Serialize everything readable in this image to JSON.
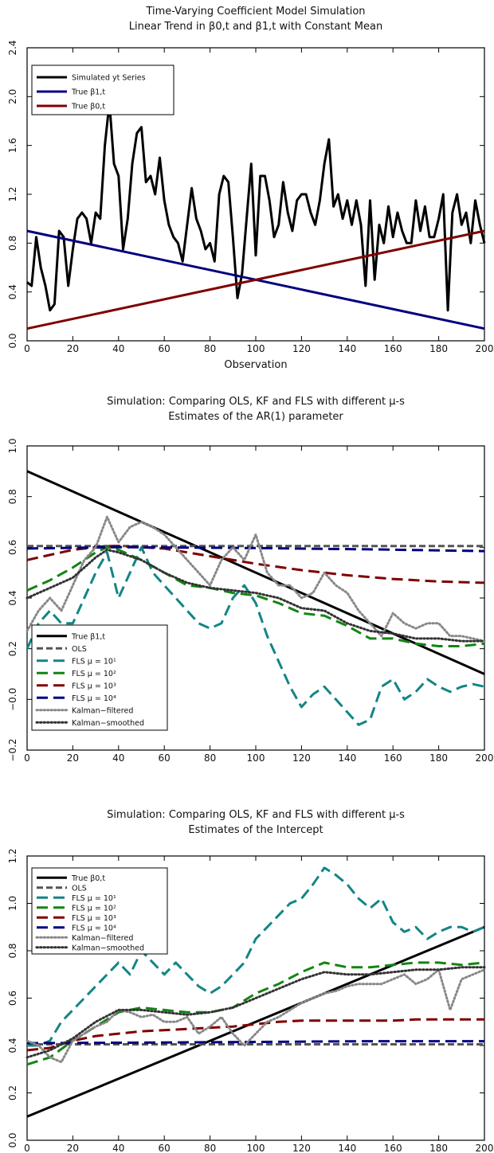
{
  "chart_data": [
    {
      "type": "line",
      "title": "Time-Varying Coefficient Model Simulation",
      "subtitle": "Linear Trend in β0,t and β1,t with Constant Mean",
      "xlabel": "Observation",
      "ylabel": "",
      "xlim": [
        0,
        200
      ],
      "ylim": [
        0.0,
        2.4
      ],
      "xticks": [
        "0",
        "20",
        "40",
        "60",
        "80",
        "100",
        "120",
        "140",
        "160",
        "180",
        "200"
      ],
      "yticks": [
        "0.0",
        "0.4",
        "0.8",
        "1.2",
        "1.6",
        "2.0",
        "2.4"
      ],
      "grid": false,
      "legend_position": "top-left",
      "colors": {
        "y": "#000000",
        "b1": "#00007f",
        "b0": "#7f0000"
      },
      "series": [
        {
          "name": "Simulated yt Series",
          "style": "solid",
          "color": "#000000",
          "x": [
            0,
            2,
            4,
            6,
            8,
            10,
            12,
            14,
            16,
            18,
            20,
            22,
            24,
            26,
            28,
            30,
            32,
            34,
            36,
            38,
            40,
            42,
            44,
            46,
            48,
            50,
            52,
            54,
            56,
            58,
            60,
            62,
            64,
            66,
            68,
            70,
            72,
            74,
            76,
            78,
            80,
            82,
            84,
            86,
            88,
            90,
            92,
            94,
            96,
            98,
            100,
            102,
            104,
            106,
            108,
            110,
            112,
            114,
            116,
            118,
            120,
            122,
            124,
            126,
            128,
            130,
            132,
            134,
            136,
            138,
            140,
            142,
            144,
            146,
            148,
            150,
            152,
            154,
            156,
            158,
            160,
            162,
            164,
            166,
            168,
            170,
            172,
            174,
            176,
            178,
            180,
            182,
            184,
            186,
            188,
            190,
            192,
            194,
            196,
            198,
            200
          ],
          "y": [
            0.48,
            0.45,
            0.85,
            0.6,
            0.45,
            0.25,
            0.3,
            0.9,
            0.85,
            0.45,
            0.75,
            1.0,
            1.05,
            1.0,
            0.8,
            1.05,
            1.0,
            1.6,
            1.95,
            1.45,
            1.35,
            0.75,
            1.0,
            1.45,
            1.7,
            1.75,
            1.3,
            1.35,
            1.2,
            1.5,
            1.15,
            0.95,
            0.85,
            0.8,
            0.65,
            0.95,
            1.25,
            1.0,
            0.9,
            0.75,
            0.8,
            0.65,
            1.2,
            1.35,
            1.3,
            0.85,
            0.35,
            0.55,
            1.0,
            1.45,
            0.7,
            1.35,
            1.35,
            1.15,
            0.85,
            0.95,
            1.3,
            1.05,
            0.9,
            1.15,
            1.2,
            1.2,
            1.05,
            0.95,
            1.15,
            1.45,
            1.65,
            1.1,
            1.2,
            1.0,
            1.15,
            0.95,
            1.15,
            0.95,
            0.45,
            1.15,
            0.5,
            0.95,
            0.8,
            1.1,
            0.85,
            1.05,
            0.9,
            0.8,
            0.8,
            1.15,
            0.9,
            1.1,
            0.85,
            0.85,
            1.0,
            1.2,
            0.25,
            1.05,
            1.2,
            0.95,
            1.05,
            0.8,
            1.15,
            0.95,
            0.8
          ]
        },
        {
          "name": "True β1,t",
          "style": "solid",
          "color": "#00007f",
          "x": [
            0,
            200
          ],
          "y": [
            0.9,
            0.1
          ]
        },
        {
          "name": "True β0,t",
          "style": "solid",
          "color": "#7f0000",
          "x": [
            0,
            200
          ],
          "y": [
            0.1,
            0.9
          ]
        }
      ]
    },
    {
      "type": "line",
      "title": "Simulation: Comparing OLS, KF and FLS with different μ-s",
      "subtitle": "Estimates of the AR(1) parameter",
      "xlabel": "",
      "ylabel": "",
      "xlim": [
        0,
        200
      ],
      "ylim": [
        -0.2,
        1.0
      ],
      "xticks": [
        "0",
        "20",
        "40",
        "60",
        "80",
        "100",
        "120",
        "140",
        "160",
        "180",
        "200"
      ],
      "yticks": [
        "−0.2",
        "−0.0",
        "0.2",
        "0.4",
        "0.6",
        "0.8",
        "1.0"
      ],
      "grid": false,
      "legend_position": "bottom-left",
      "series": [
        {
          "name": "True β1,t",
          "style": "solid",
          "color": "#000000",
          "x": [
            0,
            200
          ],
          "y": [
            0.9,
            0.1
          ]
        },
        {
          "name": "OLS",
          "style": "dashed",
          "color": "#555555",
          "x": [
            0,
            200
          ],
          "y": [
            0.605,
            0.605
          ]
        },
        {
          "name": "FLS μ = 10¹",
          "style": "longdash",
          "color": "#138585",
          "x": [
            0,
            5,
            10,
            15,
            20,
            25,
            30,
            35,
            40,
            45,
            50,
            55,
            60,
            65,
            70,
            75,
            80,
            85,
            90,
            95,
            100,
            105,
            110,
            115,
            120,
            125,
            130,
            135,
            140,
            145,
            150,
            155,
            160,
            165,
            170,
            175,
            180,
            185,
            190,
            195,
            200
          ],
          "y": [
            0.2,
            0.3,
            0.35,
            0.3,
            0.3,
            0.4,
            0.5,
            0.58,
            0.4,
            0.5,
            0.6,
            0.5,
            0.45,
            0.4,
            0.35,
            0.3,
            0.28,
            0.3,
            0.4,
            0.45,
            0.38,
            0.25,
            0.15,
            0.05,
            -0.03,
            0.02,
            0.05,
            0.0,
            -0.05,
            -0.1,
            -0.08,
            0.05,
            0.08,
            0.0,
            0.03,
            0.08,
            0.05,
            0.03,
            0.05,
            0.06,
            0.05
          ]
        },
        {
          "name": "FLS μ = 10²",
          "style": "longdash",
          "color": "#138513",
          "x": [
            0,
            10,
            20,
            30,
            35,
            40,
            50,
            60,
            70,
            80,
            90,
            100,
            110,
            120,
            130,
            140,
            150,
            160,
            170,
            180,
            190,
            200
          ],
          "y": [
            0.43,
            0.47,
            0.52,
            0.58,
            0.6,
            0.59,
            0.55,
            0.5,
            0.45,
            0.44,
            0.42,
            0.41,
            0.38,
            0.34,
            0.33,
            0.29,
            0.24,
            0.24,
            0.22,
            0.21,
            0.21,
            0.22
          ]
        },
        {
          "name": "FLS μ = 10³",
          "style": "longdash",
          "color": "#7f0000",
          "x": [
            0,
            10,
            20,
            30,
            35,
            40,
            60,
            80,
            100,
            120,
            140,
            160,
            180,
            200
          ],
          "y": [
            0.55,
            0.57,
            0.59,
            0.6,
            0.605,
            0.605,
            0.595,
            0.565,
            0.535,
            0.51,
            0.49,
            0.475,
            0.465,
            0.46
          ]
        },
        {
          "name": "FLS μ = 10⁴",
          "style": "longdash",
          "color": "#00007f",
          "x": [
            0,
            20,
            35,
            50,
            100,
            150,
            200
          ],
          "y": [
            0.595,
            0.598,
            0.6,
            0.6,
            0.597,
            0.592,
            0.585
          ]
        },
        {
          "name": "Kalman−filtered",
          "style": "dotted",
          "color": "#888888",
          "x": [
            0,
            5,
            10,
            15,
            20,
            25,
            30,
            35,
            40,
            45,
            50,
            55,
            60,
            65,
            70,
            75,
            80,
            85,
            90,
            95,
            100,
            105,
            110,
            115,
            120,
            125,
            130,
            135,
            140,
            145,
            150,
            155,
            160,
            165,
            170,
            175,
            180,
            185,
            190,
            195,
            200
          ],
          "y": [
            0.27,
            0.35,
            0.4,
            0.35,
            0.45,
            0.55,
            0.6,
            0.72,
            0.62,
            0.68,
            0.7,
            0.68,
            0.65,
            0.6,
            0.55,
            0.5,
            0.45,
            0.55,
            0.6,
            0.55,
            0.65,
            0.5,
            0.45,
            0.45,
            0.4,
            0.42,
            0.5,
            0.45,
            0.42,
            0.35,
            0.3,
            0.25,
            0.34,
            0.3,
            0.28,
            0.3,
            0.3,
            0.25,
            0.25,
            0.24,
            0.23
          ]
        },
        {
          "name": "Kalman−smoothed",
          "style": "dotted",
          "color": "#333333",
          "x": [
            0,
            10,
            20,
            30,
            35,
            40,
            50,
            60,
            70,
            80,
            90,
            100,
            110,
            120,
            130,
            140,
            150,
            160,
            170,
            180,
            190,
            200
          ],
          "y": [
            0.4,
            0.44,
            0.48,
            0.56,
            0.59,
            0.58,
            0.55,
            0.5,
            0.46,
            0.44,
            0.43,
            0.42,
            0.4,
            0.36,
            0.35,
            0.3,
            0.27,
            0.26,
            0.24,
            0.24,
            0.23,
            0.23
          ]
        }
      ]
    },
    {
      "type": "line",
      "title": "Simulation: Comparing OLS, KF and FLS with different μ-s",
      "subtitle": "Estimates of the Intercept",
      "xlabel": "",
      "ylabel": "",
      "xlim": [
        0,
        200
      ],
      "ylim": [
        0.0,
        1.2
      ],
      "xticks": [
        "0",
        "20",
        "40",
        "60",
        "80",
        "100",
        "120",
        "140",
        "160",
        "180",
        "200"
      ],
      "yticks": [
        "0.0",
        "0.2",
        "0.4",
        "0.6",
        "0.8",
        "1.0",
        "1.2"
      ],
      "grid": false,
      "legend_position": "top-left",
      "series": [
        {
          "name": "True β0,t",
          "style": "solid",
          "color": "#000000",
          "x": [
            0,
            200
          ],
          "y": [
            0.1,
            0.9
          ]
        },
        {
          "name": "OLS",
          "style": "dashed",
          "color": "#555555",
          "x": [
            0,
            200
          ],
          "y": [
            0.405,
            0.405
          ]
        },
        {
          "name": "FLS μ = 10¹",
          "style": "longdash",
          "color": "#138585",
          "x": [
            0,
            5,
            10,
            15,
            20,
            25,
            30,
            35,
            40,
            45,
            50,
            55,
            60,
            65,
            70,
            75,
            80,
            85,
            90,
            95,
            100,
            105,
            110,
            115,
            120,
            125,
            130,
            135,
            140,
            145,
            150,
            155,
            160,
            165,
            170,
            175,
            180,
            185,
            190,
            195,
            200
          ],
          "y": [
            0.4,
            0.4,
            0.42,
            0.5,
            0.55,
            0.6,
            0.65,
            0.7,
            0.75,
            0.7,
            0.8,
            0.75,
            0.7,
            0.75,
            0.7,
            0.65,
            0.62,
            0.65,
            0.7,
            0.75,
            0.85,
            0.9,
            0.95,
            1.0,
            1.02,
            1.08,
            1.15,
            1.12,
            1.08,
            1.02,
            0.98,
            1.02,
            0.92,
            0.88,
            0.9,
            0.85,
            0.88,
            0.9,
            0.9,
            0.88,
            0.9
          ]
        },
        {
          "name": "FLS μ = 10²",
          "style": "longdash",
          "color": "#138513",
          "x": [
            0,
            10,
            20,
            30,
            40,
            50,
            60,
            70,
            80,
            90,
            100,
            110,
            120,
            130,
            140,
            150,
            160,
            170,
            180,
            190,
            200
          ],
          "y": [
            0.32,
            0.35,
            0.42,
            0.48,
            0.54,
            0.56,
            0.55,
            0.54,
            0.54,
            0.56,
            0.62,
            0.66,
            0.71,
            0.75,
            0.73,
            0.73,
            0.74,
            0.75,
            0.75,
            0.74,
            0.75
          ]
        },
        {
          "name": "FLS μ = 10³",
          "style": "longdash",
          "color": "#7f0000",
          "x": [
            0,
            10,
            20,
            30,
            40,
            50,
            60,
            70,
            80,
            90,
            100,
            110,
            120,
            130,
            140,
            150,
            160,
            170,
            180,
            190,
            200
          ],
          "y": [
            0.38,
            0.39,
            0.42,
            0.44,
            0.45,
            0.46,
            0.465,
            0.47,
            0.475,
            0.48,
            0.49,
            0.5,
            0.505,
            0.505,
            0.505,
            0.505,
            0.505,
            0.51,
            0.51,
            0.51,
            0.51
          ]
        },
        {
          "name": "FLS μ = 10⁴",
          "style": "longdash",
          "color": "#00007f",
          "x": [
            0,
            50,
            100,
            150,
            200
          ],
          "y": [
            0.41,
            0.412,
            0.415,
            0.418,
            0.418
          ]
        },
        {
          "name": "Kalman−filtered",
          "style": "dotted",
          "color": "#888888",
          "x": [
            0,
            5,
            10,
            15,
            20,
            25,
            30,
            35,
            40,
            45,
            50,
            55,
            60,
            65,
            70,
            75,
            80,
            85,
            90,
            95,
            100,
            105,
            110,
            115,
            120,
            125,
            130,
            135,
            140,
            145,
            150,
            155,
            160,
            165,
            170,
            175,
            180,
            185,
            190,
            195,
            200
          ],
          "y": [
            0.42,
            0.4,
            0.35,
            0.33,
            0.42,
            0.45,
            0.48,
            0.5,
            0.55,
            0.54,
            0.52,
            0.53,
            0.5,
            0.5,
            0.52,
            0.45,
            0.48,
            0.52,
            0.45,
            0.4,
            0.45,
            0.5,
            0.52,
            0.55,
            0.58,
            0.6,
            0.62,
            0.63,
            0.65,
            0.66,
            0.66,
            0.66,
            0.68,
            0.7,
            0.66,
            0.68,
            0.72,
            0.55,
            0.68,
            0.7,
            0.72
          ]
        },
        {
          "name": "Kalman−smoothed",
          "style": "dotted",
          "color": "#333333",
          "x": [
            0,
            10,
            20,
            30,
            40,
            50,
            60,
            70,
            80,
            90,
            100,
            110,
            120,
            130,
            140,
            150,
            160,
            170,
            180,
            190,
            200
          ],
          "y": [
            0.35,
            0.38,
            0.43,
            0.5,
            0.55,
            0.55,
            0.54,
            0.53,
            0.54,
            0.56,
            0.6,
            0.64,
            0.68,
            0.71,
            0.7,
            0.7,
            0.71,
            0.72,
            0.72,
            0.73,
            0.73
          ]
        }
      ]
    }
  ]
}
